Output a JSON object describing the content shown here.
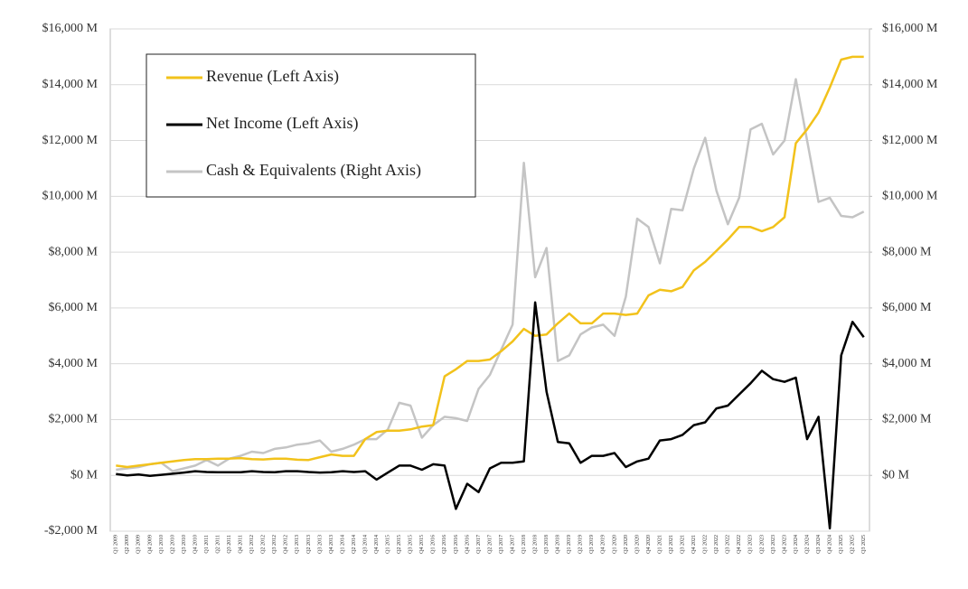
{
  "chart_data": {
    "type": "line",
    "categories": [
      "Q1 2009",
      "Q2 2009",
      "Q3 2009",
      "Q4 2009",
      "Q1 2010",
      "Q2 2010",
      "Q3 2010",
      "Q4 2010",
      "Q1 2011",
      "Q2 2011",
      "Q3 2011",
      "Q4 2011",
      "Q1 2012",
      "Q2 2012",
      "Q3 2012",
      "Q4 2012",
      "Q1 2013",
      "Q2 2013",
      "Q3 2013",
      "Q4 2013",
      "Q1 2014",
      "Q2 2014",
      "Q3 2014",
      "Q4 2014",
      "Q1 2015",
      "Q2 2015",
      "Q3 2015",
      "Q4 2015",
      "Q1 2016",
      "Q2 2016",
      "Q3 2016",
      "Q4 2016",
      "Q1 2017",
      "Q2 2017",
      "Q3 2017",
      "Q4 2017",
      "Q1 2018",
      "Q2 2018",
      "Q3 2018",
      "Q4 2018",
      "Q1 2019",
      "Q2 2019",
      "Q3 2019",
      "Q4 2019",
      "Q1 2020",
      "Q2 2020",
      "Q3 2020",
      "Q4 2020",
      "Q1 2021",
      "Q2 2021",
      "Q3 2021",
      "Q4 2021",
      "Q1 2022",
      "Q2 2022",
      "Q3 2022",
      "Q4 2022",
      "Q1 2023",
      "Q2 2023",
      "Q3 2023",
      "Q4 2023",
      "Q1 2024",
      "Q2 2024",
      "Q3 2024",
      "Q4 2024",
      "Q1 2025",
      "Q2 2025",
      "Q3 2025"
    ],
    "series": [
      {
        "name": "Revenue (Left Axis)",
        "color": "#f2c21b",
        "values": [
          350,
          300,
          350,
          400,
          450,
          500,
          550,
          580,
          580,
          600,
          600,
          620,
          580,
          570,
          600,
          600,
          560,
          550,
          650,
          750,
          700,
          700,
          1300,
          1550,
          1600,
          1600,
          1650,
          1750,
          1800,
          3550,
          3800,
          4100,
          4100,
          4150,
          4450,
          4800,
          5250,
          5000,
          5050,
          5450,
          5800,
          5450,
          5450,
          5800,
          5800,
          5750,
          5800,
          6450,
          6650,
          6600,
          6750,
          7350,
          7650,
          8050,
          8450,
          8900,
          8900,
          8750,
          8900,
          9250,
          11900,
          12400,
          13000,
          13900,
          14900,
          15000,
          15000
        ]
      },
      {
        "name": "Net Income (Left Axis)",
        "color": "#000000",
        "values": [
          50,
          0,
          30,
          -20,
          20,
          60,
          100,
          150,
          120,
          110,
          110,
          110,
          150,
          120,
          110,
          150,
          150,
          120,
          100,
          110,
          150,
          120,
          150,
          -150,
          100,
          350,
          350,
          200,
          400,
          350,
          -1200,
          -300,
          -600,
          250,
          450,
          450,
          500,
          6200,
          3000,
          1200,
          1150,
          450,
          700,
          700,
          800,
          300,
          500,
          600,
          1250,
          1300,
          1450,
          1800,
          1900,
          2400,
          2500,
          2900,
          3300,
          3750,
          3450,
          3350,
          3500,
          1300,
          2100,
          -1900,
          4300,
          5500,
          4950
        ]
      },
      {
        "name": "Cash & Equivalents (Right Axis)",
        "color": "#c4c4c4",
        "axis": "y2",
        "values": [
          200,
          250,
          300,
          400,
          450,
          150,
          250,
          350,
          550,
          350,
          600,
          700,
          850,
          800,
          950,
          1000,
          1100,
          1150,
          1250,
          850,
          950,
          1100,
          1300,
          1300,
          1650,
          2600,
          2500,
          1350,
          1800,
          2100,
          2050,
          1950,
          3100,
          3600,
          4500,
          5400,
          11200,
          7100,
          8150,
          4100,
          4300,
          5050,
          5300,
          5400,
          5000,
          6400,
          9200,
          8900,
          7600,
          9550,
          9500,
          11000,
          12100,
          10200,
          9000,
          9950,
          12400,
          12600,
          11500,
          12000,
          14200,
          12000,
          9800,
          9950,
          9300,
          9250,
          9450
        ]
      }
    ],
    "ylim": [
      -2000,
      16000
    ],
    "yticks": [
      {
        "value": -2000,
        "label": "-$2,000 M"
      },
      {
        "value": 0,
        "label": "$0 M"
      },
      {
        "value": 2000,
        "label": "$2,000 M"
      },
      {
        "value": 4000,
        "label": "$4,000 M"
      },
      {
        "value": 6000,
        "label": "$6,000 M"
      },
      {
        "value": 8000,
        "label": "$8,000 M"
      },
      {
        "value": 10000,
        "label": "$10,000 M"
      },
      {
        "value": 12000,
        "label": "$12,000 M"
      },
      {
        "value": 14000,
        "label": "$14,000 M"
      },
      {
        "value": 16000,
        "label": "$16,000 M"
      }
    ],
    "y2lim": [
      -2000,
      16000
    ],
    "y2ticks": [
      {
        "value": 0,
        "label": "$0 M"
      },
      {
        "value": 2000,
        "label": "$2,000 M"
      },
      {
        "value": 4000,
        "label": "$4,000 M"
      },
      {
        "value": 6000,
        "label": "$6,000 M"
      },
      {
        "value": 8000,
        "label": "$8,000 M"
      },
      {
        "value": 10000,
        "label": "$10,000 M"
      },
      {
        "value": 12000,
        "label": "$12,000 M"
      },
      {
        "value": 14000,
        "label": "$14,000 M"
      },
      {
        "value": 16000,
        "label": "$16,000 M"
      }
    ],
    "grid": true,
    "legend": "upper left"
  }
}
